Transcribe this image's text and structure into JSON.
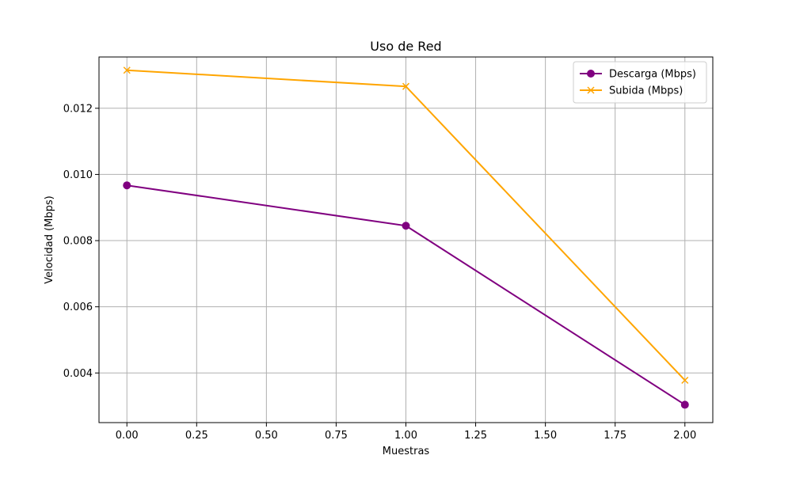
{
  "chart_data": {
    "type": "line",
    "title": "Uso de Red",
    "xlabel": "Muestras",
    "ylabel": "Velocidad (Mbps)",
    "xlim": [
      -0.1,
      2.1
    ],
    "ylim": [
      0.0025,
      0.01355
    ],
    "x_ticks": [
      0.0,
      0.25,
      0.5,
      0.75,
      1.0,
      1.25,
      1.5,
      1.75,
      2.0
    ],
    "x_tick_labels": [
      "0.00",
      "0.25",
      "0.50",
      "0.75",
      "1.00",
      "1.25",
      "1.50",
      "1.75",
      "2.00"
    ],
    "y_ticks": [
      0.004,
      0.006,
      0.008,
      0.01,
      0.012
    ],
    "y_tick_labels": [
      "0.004",
      "0.006",
      "0.008",
      "0.010",
      "0.012"
    ],
    "grid": true,
    "legend_position": "top-right",
    "series": [
      {
        "name": "Descarga (Mbps)",
        "color": "#800080",
        "marker": "circle",
        "x": [
          0,
          1,
          2
        ],
        "y": [
          0.00967,
          0.00845,
          0.00304
        ]
      },
      {
        "name": "Subida (Mbps)",
        "color": "#ffa500",
        "marker": "x",
        "x": [
          0,
          1,
          2
        ],
        "y": [
          0.01315,
          0.01266,
          0.00378
        ]
      }
    ]
  }
}
